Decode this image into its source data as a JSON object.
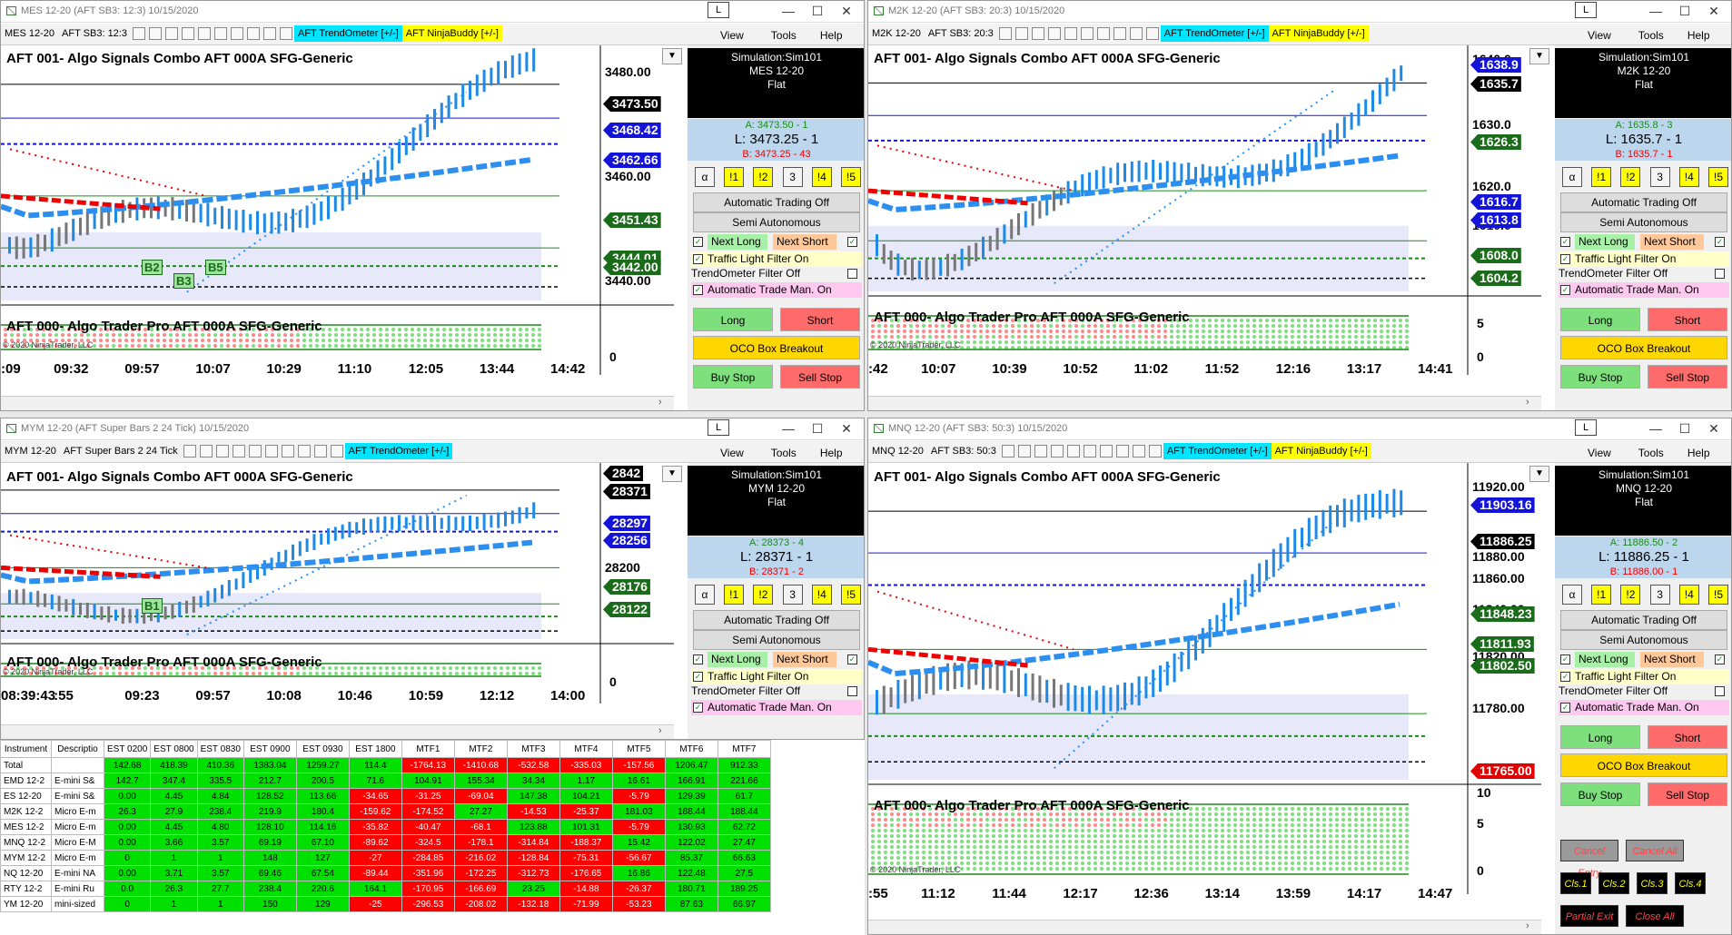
{
  "windows": [
    {
      "id": "mes",
      "title": "MES 12-20 (AFT SB3: 12:3)  10/15/2020",
      "toolbar": {
        "instrument": "MES 12-20",
        "bars": "AFT SB3: 12:3",
        "tag1": "AFT TrendOmeter [+/-]",
        "tag2": "AFT NinjaBuddy [+/-]"
      },
      "menu": {
        "view": "View",
        "tools": "Tools",
        "help": "Help",
        "l_button": "L"
      },
      "chart_title": "AFT 001- Algo Signals Combo AFT 000A SFG-Generic",
      "sub_title": "AFT 000- Algo Trader Pro AFT 000A SFG-Generic",
      "copyright": "© 2020 NinjaTrader, LLC",
      "price_labels": [
        "3480.00",
        "3460.00",
        "3440.00"
      ],
      "sub_labels": [
        "0"
      ],
      "flags": [
        {
          "text": "3473.50",
          "color": "#000000"
        },
        {
          "text": "3468.42",
          "color": "#1414d8"
        },
        {
          "text": "3462.66",
          "color": "#1414d8"
        },
        {
          "text": "3451.43",
          "color": "#1a6b1a"
        },
        {
          "text": "3444.01",
          "color": "#1a6b1a"
        },
        {
          "text": "3442.00",
          "color": "#1a6b1a"
        }
      ],
      "time_labels": [
        ":09",
        "09:32",
        "09:57",
        "10:07",
        "10:29",
        "11:10",
        "12:05",
        "13:44",
        "14:42"
      ],
      "markers": [
        "B2",
        "B3",
        "B5"
      ],
      "panel": {
        "account": "Simulation:Sim101",
        "instrument": "MES 12-20",
        "position": "Flat",
        "ask": "A: 3473.50 - 1",
        "last": "L: 3473.25 - 1",
        "bid": "B: 3473.25 - 43"
      }
    },
    {
      "id": "m2k",
      "title": "M2K 12-20 (AFT SB3: 20:3)  10/15/2020",
      "toolbar": {
        "instrument": "M2K 12-20",
        "bars": "AFT SB3: 20:3",
        "tag1": "AFT TrendOmeter [+/-]",
        "tag2": "AFT NinjaBuddy [+/-]"
      },
      "menu": {
        "view": "View",
        "tools": "Tools",
        "help": "Help",
        "l_button": "L"
      },
      "chart_title": "AFT 001- Algo Signals Combo AFT 000A SFG-Generic",
      "sub_title": "AFT 000- Algo Trader Pro AFT 000A SFG-Generic",
      "copyright": "© 2020 NinjaTrader, LLC",
      "price_labels": [
        "1640.0",
        "1630.0",
        "1620.0",
        "1610.0"
      ],
      "sub_labels": [
        "5",
        "0"
      ],
      "flags": [
        {
          "text": "1638.9",
          "color": "#1414d8"
        },
        {
          "text": "1635.7",
          "color": "#000000"
        },
        {
          "text": "1626.3",
          "color": "#1a6b1a"
        },
        {
          "text": "1616.7",
          "color": "#1414d8"
        },
        {
          "text": "1613.8",
          "color": "#1414d8"
        },
        {
          "text": "1608.0",
          "color": "#1a6b1a"
        },
        {
          "text": "1604.2",
          "color": "#1a6b1a"
        }
      ],
      "time_labels": [
        ":42",
        "10:07",
        "10:39",
        "10:52",
        "11:02",
        "11:52",
        "12:16",
        "13:17",
        "14:41"
      ],
      "markers": [],
      "panel": {
        "account": "Simulation:Sim101",
        "instrument": "M2K 12-20",
        "position": "Flat",
        "ask": "A: 1635.8 - 3",
        "last": "L: 1635.7 - 1",
        "bid": "B: 1635.7 - 1"
      }
    },
    {
      "id": "mym",
      "title": "MYM 12-20 (AFT Super Bars 2  24 Tick)  10/15/2020",
      "toolbar": {
        "instrument": "MYM 12-20",
        "bars": "AFT Super Bars 2  24 Tick",
        "tag1": "AFT TrendOmeter [+/-]",
        "tag2": ""
      },
      "menu": {
        "view": "View",
        "tools": "Tools",
        "help": "Help",
        "l_button": "L"
      },
      "chart_title": "AFT 001- Algo Signals Combo AFT 000A SFG-Generic",
      "sub_title": "AFT 000- Algo Trader Pro AFT 000A SFG-Generic",
      "copyright": "© 2020 NinjaTrader, LLC",
      "price_labels": [
        "28200"
      ],
      "sub_labels": [
        "0"
      ],
      "flags": [
        {
          "text": "2842",
          "color": "#000000"
        },
        {
          "text": "28371",
          "color": "#000000"
        },
        {
          "text": "28297",
          "color": "#1414d8"
        },
        {
          "text": "28256",
          "color": "#1414d8"
        },
        {
          "text": "28176",
          "color": "#1a6b1a"
        },
        {
          "text": "28122",
          "color": "#1a6b1a"
        }
      ],
      "time_labels": [
        "08:39:43",
        ":55",
        "09:23",
        "09:57",
        "10:08",
        "10:46",
        "10:59",
        "12:12",
        "14:00"
      ],
      "markers": [
        "B1"
      ],
      "panel": {
        "account": "Simulation:Sim101",
        "instrument": "MYM 12-20",
        "position": "Flat",
        "ask": "A: 28373 - 4",
        "last": "L: 28371 - 1",
        "bid": "B: 28371 - 2"
      }
    },
    {
      "id": "mnq",
      "title": "MNQ 12-20 (AFT SB3: 50:3)  10/15/2020",
      "toolbar": {
        "instrument": "MNQ 12-20",
        "bars": "AFT SB3: 50:3",
        "tag1": "AFT TrendOmeter [+/-]",
        "tag2": "AFT NinjaBuddy [+/-]"
      },
      "menu": {
        "view": "View",
        "tools": "Tools",
        "help": "Help",
        "l_button": "L"
      },
      "chart_title": "AFT 001- Algo Signals Combo AFT 000A SFG-Generic",
      "sub_title": "AFT 000- Algo Trader Pro AFT 000A SFG-Generic",
      "copyright": "© 2020 NinjaTrader, LLC",
      "price_labels": [
        "11920.00",
        "11880.00",
        "11860.00",
        "11840.00",
        "11820.00",
        "11780.00"
      ],
      "sub_labels": [
        "10",
        "5",
        "0"
      ],
      "flags": [
        {
          "text": "11903.16",
          "color": "#1414d8"
        },
        {
          "text": "11886.25",
          "color": "#000000"
        },
        {
          "text": "11848.23",
          "color": "#1a6b1a"
        },
        {
          "text": "11811.93",
          "color": "#1a6b1a"
        },
        {
          "text": "11802.50",
          "color": "#1a6b1a"
        },
        {
          "text": "11765.00",
          "color": "#e00000"
        }
      ],
      "time_labels": [
        ":55",
        "11:12",
        "11:44",
        "12:17",
        "12:36",
        "13:14",
        "13:59",
        "14:17",
        "14:47"
      ],
      "markers": [],
      "panel": {
        "account": "Simulation:Sim101",
        "instrument": "MNQ 12-20",
        "position": "Flat",
        "ask": "A: 11886.50 - 2",
        "last": "L: 11886.25 - 1",
        "bid": "B: 11886.00 - 1"
      }
    }
  ],
  "panel_common": {
    "alpha": "α",
    "q1": "!1",
    "q2": "!2",
    "q3": "3",
    "q4": "!4",
    "q5": "!5",
    "auto_trading": "Automatic Trading Off",
    "semi_auto": "Semi Autonomous",
    "next_long": "Next Long",
    "next_short": "Next Short",
    "traffic": "Traffic Light Filter On",
    "trendometer": "TrendOmeter Filter Off",
    "auto_trade_man": "Automatic Trade Man. On",
    "long": "Long",
    "short": "Short",
    "oco": "OCO Box Breakout",
    "buy_stop": "Buy Stop",
    "sell_stop": "Sell Stop"
  },
  "side_buttons": {
    "cancel_entry": "Cancel Entry",
    "cancel_all": "Cancel All",
    "cls1": "Cls.1",
    "cls2": "Cls.2",
    "cls3": "Cls.3",
    "cls4": "Cls.4",
    "partial_exit": "Partial Exit",
    "close_all": "Close All"
  },
  "grid": {
    "headers": [
      "Instrument",
      "Descriptio",
      "EST 0200",
      "EST 0800",
      "EST 0830",
      "EST 0900",
      "EST 0930",
      "EST 1800",
      "MTF1",
      "MTF2",
      "MTF3",
      "MTF4",
      "MTF5",
      "MTF6",
      "MTF7"
    ],
    "rows": [
      [
        "Total",
        "",
        "142.68",
        "418.39",
        "410.36",
        "1383.04",
        "1259.27",
        "114.4",
        "-1764.13",
        "-1410.68",
        "-532.58",
        "-335.03",
        "-157.56",
        "1206.47",
        "912.33"
      ],
      [
        "EMD 12-2",
        "E-mini S&",
        "142.7",
        "347.4",
        "335.5",
        "212.7",
        "200.5",
        "71.6",
        "104.91",
        "155.34",
        "34.34",
        "1.17",
        "16.61",
        "166.91",
        "221.66"
      ],
      [
        "ES 12-20",
        "E-mini S&",
        "0.00",
        "4.45",
        "4.84",
        "128.52",
        "113.66",
        "-34.65",
        "-31.25",
        "-69.04",
        "147.38",
        "104.21",
        "-5.79",
        "129.39",
        "61.7"
      ],
      [
        "M2K 12-2",
        "Micro E-m",
        "26.3",
        "27.9",
        "238.4",
        "219.9",
        "180.4",
        "-159.62",
        "-174.52",
        "27.27",
        "-14.53",
        "-25.37",
        "181.03",
        "188.44",
        "188.44"
      ],
      [
        "MES 12-2",
        "Micro E-m",
        "0.00",
        "4.45",
        "4.80",
        "128.10",
        "114.16",
        "-35.82",
        "-40.47",
        "-68.1",
        "123.88",
        "101.31",
        "-5.79",
        "130.93",
        "62.72"
      ],
      [
        "MNQ 12-2",
        "Micro E-M",
        "0.00",
        "3.66",
        "3.57",
        "69.19",
        "67.10",
        "-89.62",
        "-324.5",
        "-178.1",
        "-314.84",
        "-188.37",
        "15.42",
        "122.02",
        "27.47"
      ],
      [
        "MYM 12-2",
        "Micro E-m",
        "0",
        "1",
        "1",
        "148",
        "127",
        "-27",
        "-284.85",
        "-216.02",
        "-128.84",
        "-75.31",
        "-56.67",
        "85.37",
        "66.63"
      ],
      [
        "NQ 12-20",
        "E-mini NA",
        "0.00",
        "3.71",
        "3.57",
        "69.46",
        "67.54",
        "-89.44",
        "-351.96",
        "-172.25",
        "-312.73",
        "-176.65",
        "16.86",
        "122.48",
        "27.5"
      ],
      [
        "RTY 12-2",
        "E-mini Ru",
        "0.0",
        "26.3",
        "27.7",
        "238.4",
        "220.6",
        "164.1",
        "-170.95",
        "-166.69",
        "23.25",
        "-14.88",
        "-26.37",
        "180.71",
        "189.25"
      ],
      [
        "YM 12-20",
        "mini-sized",
        "0",
        "1",
        "1",
        "150",
        "129",
        "-25",
        "-296.53",
        "-208.02",
        "-132.18",
        "-71.99",
        "-53.23",
        "87.63",
        "66.97"
      ]
    ]
  }
}
